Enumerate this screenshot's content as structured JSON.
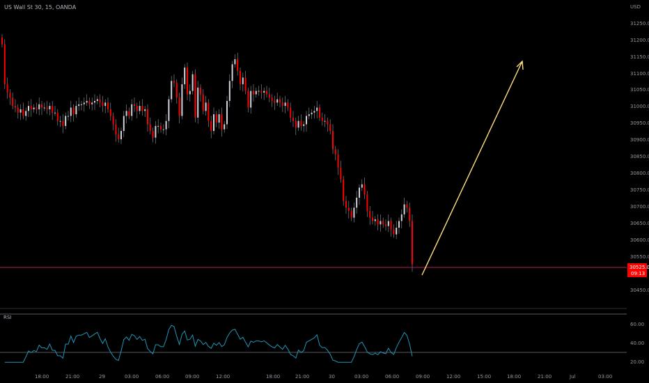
{
  "symbol": {
    "title": "US Wall St 30, 15, OANDA"
  },
  "price_axis": {
    "currency": "USD",
    "ticks": [
      "31250.0",
      "31200.0",
      "31150.0",
      "31100.0",
      "31050.0",
      "31000.0",
      "30950.0",
      "30900.0",
      "30850.0",
      "30800.0",
      "30750.0",
      "30700.0",
      "30650.0",
      "30600.0",
      "30550.0",
      "30450.0"
    ],
    "current_price": "30525.0",
    "countdown": "09:13",
    "current_price_color": "#ff0000"
  },
  "rsi_panel": {
    "label": "RSI",
    "ticks": [
      "60.00",
      "40.00",
      "20.00"
    ],
    "line_color": "#2196b6",
    "upper_band": 70,
    "lower_band": 30
  },
  "time_axis": {
    "labels": [
      "18:00",
      "21:00",
      "29",
      "03:00",
      "06:00",
      "09:00",
      "12:00",
      "18:00",
      "21:00",
      "30",
      "03:00",
      "06:00",
      "09:00",
      "12:00",
      "15:00",
      "18:00",
      "21:00",
      "Jul",
      "03:00"
    ]
  },
  "colors": {
    "background": "#000000",
    "candle": "#ff0000",
    "wick": "#9598a1",
    "arrow": "#ffe082",
    "price_line": "#c2185b"
  },
  "chart_data": {
    "type": "candlestick",
    "y_range": [
      30425,
      31285
    ],
    "candle_closes": [
      31190,
      31070,
      31045,
      31030,
      31005,
      31000,
      30985,
      30995,
      30975,
      30990,
      31005,
      30995,
      31000,
      30995,
      31010,
      31000,
      31000,
      30995,
      31005,
      30985,
      30985,
      30960,
      30960,
      30945,
      30975,
      30975,
      31000,
      30980,
      31005,
      31010,
      31010,
      31015,
      31020,
      31010,
      31015,
      31020,
      31025,
      31015,
      31005,
      31015,
      30995,
      30975,
      30950,
      30920,
      30905,
      30930,
      30975,
      30990,
      30975,
      31010,
      31005,
      30990,
      31005,
      30990,
      30995,
      30950,
      30930,
      30910,
      30945,
      30945,
      30935,
      30935,
      30960,
      31025,
      31080,
      31075,
      31030,
      30975,
      31070,
      31120,
      31040,
      31050,
      31100,
      30970,
      31060,
      31040,
      30990,
      31015,
      30960,
      30930,
      30980,
      30955,
      30980,
      30935,
      30950,
      31020,
      31080,
      31130,
      31145,
      31110,
      31070,
      31090,
      31050,
      31000,
      31050,
      31040,
      31050,
      31050,
      31045,
      31050,
      31040,
      31030,
      31020,
      31015,
      31025,
      31015,
      31005,
      31015,
      31000,
      30970,
      30960,
      30940,
      30960,
      30945,
      30950,
      30975,
      30980,
      30985,
      30990,
      31000,
      30970,
      30960,
      30960,
      30950,
      30930,
      30875,
      30860,
      30820,
      30785,
      30720,
      30700,
      30690,
      30670,
      30700,
      30730,
      30760,
      30770,
      30740,
      30690,
      30670,
      30660,
      30665,
      30650,
      30660,
      30650,
      30645,
      30660,
      30635,
      30620,
      30640,
      30660,
      30680,
      30710,
      30700,
      30660,
      30530
    ]
  }
}
